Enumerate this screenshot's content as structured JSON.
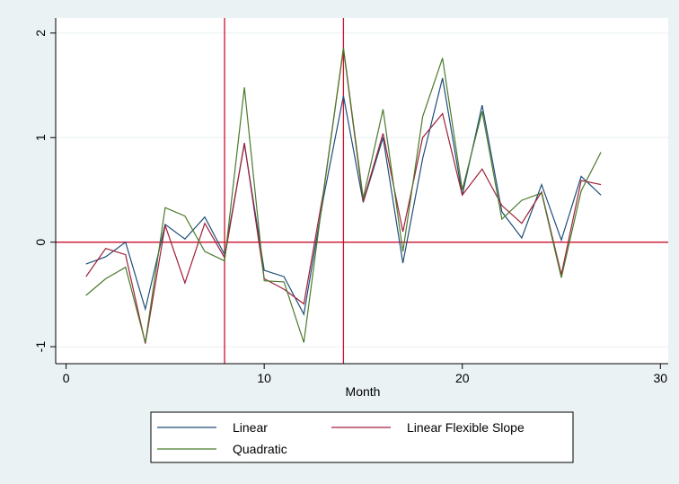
{
  "chart_data": {
    "type": "line",
    "xlabel": "Month",
    "ylabel": "",
    "xlim": [
      0,
      30
    ],
    "ylim": [
      -1,
      2
    ],
    "xticks": [
      "0",
      "10",
      "20",
      "30"
    ],
    "yticks": [
      "-1",
      "0",
      "1",
      "2"
    ],
    "grid": true,
    "legend_position": "bottom",
    "reference_lines": {
      "vertical": [
        8,
        14
      ],
      "horizontal": [
        0
      ],
      "color": "#c8102e"
    },
    "x": [
      1,
      2,
      3,
      4,
      5,
      6,
      7,
      8,
      9,
      10,
      11,
      12,
      13,
      14,
      15,
      16,
      17,
      18,
      19,
      20,
      21,
      22,
      23,
      24,
      25,
      26,
      27
    ],
    "series": [
      {
        "name": "Linear",
        "color": "#1f4e79",
        "values": [
          -0.21,
          -0.14,
          0.0,
          -0.64,
          0.17,
          0.03,
          0.24,
          -0.12,
          0.94,
          -0.27,
          -0.33,
          -0.69,
          0.43,
          1.4,
          0.38,
          1.0,
          -0.2,
          0.8,
          1.57,
          0.45,
          1.31,
          0.29,
          0.04,
          0.55,
          0.02,
          0.63,
          0.45
        ]
      },
      {
        "name": "Linear Flexible Slope",
        "color": "#a0203a",
        "values": [
          -0.33,
          -0.06,
          -0.12,
          -0.97,
          0.16,
          -0.39,
          0.18,
          -0.15,
          0.95,
          -0.35,
          -0.45,
          -0.59,
          0.49,
          1.85,
          0.39,
          1.04,
          0.1,
          1.0,
          1.23,
          0.45,
          0.7,
          0.35,
          0.18,
          0.48,
          -0.31,
          0.59,
          0.55
        ]
      },
      {
        "name": "Quadratic",
        "color": "#4a7a2b",
        "values": [
          -0.51,
          -0.35,
          -0.24,
          -0.96,
          0.33,
          0.25,
          -0.09,
          -0.18,
          1.48,
          -0.37,
          -0.38,
          -0.96,
          0.48,
          1.86,
          0.42,
          1.27,
          -0.09,
          1.2,
          1.76,
          0.5,
          1.25,
          0.22,
          0.4,
          0.47,
          -0.34,
          0.49,
          0.86
        ]
      }
    ]
  }
}
